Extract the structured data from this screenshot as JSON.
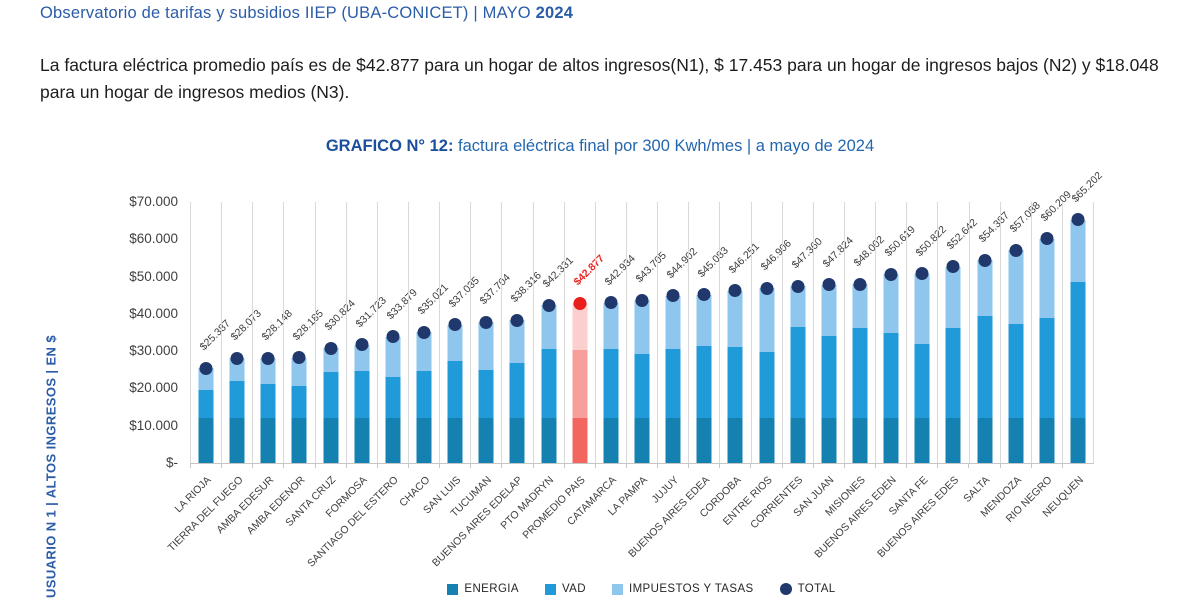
{
  "page": {
    "header_title_regular": "Observatorio de tarifas y subsidios IIEP (UBA-CONICET) | MAYO ",
    "header_title_bold": "2024",
    "intro_text": "La factura eléctrica promedio país es de $42.877 para un hogar de altos ingresos(N1), $ 17.453 para un hogar de ingresos bajos (N2) y $18.048 para un hogar de ingresos medios (N3)."
  },
  "chart": {
    "title_bold": "GRAFICO N° 12:",
    "title_rest": " factura eléctrica final por 300 Kwh/mes | a mayo de 2024",
    "y_axis_title": "USUARIO N 1 | ALTOS INGRESOS | EN $",
    "y_ticks": [
      "$70.000",
      "$60.000",
      "$50.000",
      "$40.000",
      "$30.000",
      "$20.000",
      "$10.000",
      "$-"
    ],
    "legend": [
      {
        "label": "ENERGIA",
        "shape": "square",
        "color": "#1581b1"
      },
      {
        "label": "VAD",
        "shape": "square",
        "color": "#219ada"
      },
      {
        "label": "IMPUESTOS Y TASAS",
        "shape": "square",
        "color": "#8ec6ed"
      },
      {
        "label": "TOTAL",
        "shape": "circle",
        "color": "#20386b"
      }
    ]
  },
  "colors": {
    "energia": "#1581b1",
    "vad": "#219ada",
    "impuestos": "#8ec6ed",
    "total_dot": "#20386b",
    "highlight_energia": "#f2665f",
    "highlight_vad": "#f79f9d",
    "highlight_impuestos": "#fbcfce",
    "highlight_dot": "#e81f1b",
    "title_blue": "#2467ae",
    "header_blue": "#2b5ca8",
    "gridline": "#d9d9d9"
  },
  "chart_data": {
    "type": "bar",
    "subtype": "stacked-bars-with-total-dot",
    "title": "GRAFICO N° 12: factura eléctrica final por 300 Kwh/mes | a mayo de 2024",
    "xlabel": "",
    "ylabel": "USUARIO N 1 | ALTOS INGRESOS | EN $",
    "ylim": [
      0,
      70000
    ],
    "grid": "vertical-only",
    "legend_position": "bottom-center",
    "series_names": [
      "ENERGIA",
      "VAD",
      "IMPUESTOS Y TASAS",
      "TOTAL"
    ],
    "note": "ENERGIA/VAD/IMPUESTOS segment values estimated from pixel heights; totals are the printed data labels",
    "bars": [
      {
        "category": "LA RIOJA",
        "label": "$25.387",
        "total": 25387,
        "energia": 12100,
        "vad": 7500,
        "impuestos": 5787,
        "highlight": false
      },
      {
        "category": "TIERRA DEL FUEGO",
        "label": "$28.073",
        "total": 28073,
        "energia": 12100,
        "vad": 10000,
        "impuestos": 5973,
        "highlight": false
      },
      {
        "category": "AMBA EDESUR",
        "label": "$28.148",
        "total": 28148,
        "energia": 12100,
        "vad": 9000,
        "impuestos": 7048,
        "highlight": false
      },
      {
        "category": "AMBA EDENOR",
        "label": "$28.185",
        "total": 28185,
        "energia": 12100,
        "vad": 8600,
        "impuestos": 7485,
        "highlight": false
      },
      {
        "category": "SANTA CRUZ",
        "label": "$30.824",
        "total": 30824,
        "energia": 12100,
        "vad": 12200,
        "impuestos": 6524,
        "highlight": false
      },
      {
        "category": "FORMOSA",
        "label": "$31.723",
        "total": 31723,
        "energia": 12100,
        "vad": 12700,
        "impuestos": 6923,
        "highlight": false
      },
      {
        "category": "SANTIAGO DEL ESTERO",
        "label": "$33.879",
        "total": 33879,
        "energia": 12100,
        "vad": 11100,
        "impuestos": 10679,
        "highlight": false
      },
      {
        "category": "CHACO",
        "label": "$35.021",
        "total": 35021,
        "energia": 12100,
        "vad": 12600,
        "impuestos": 10321,
        "highlight": false
      },
      {
        "category": "SAN LUIS",
        "label": "$37.035",
        "total": 37035,
        "energia": 12100,
        "vad": 15300,
        "impuestos": 9635,
        "highlight": false
      },
      {
        "category": "TUCUMAN",
        "label": "$37.704",
        "total": 37704,
        "energia": 12100,
        "vad": 12800,
        "impuestos": 12804,
        "highlight": false
      },
      {
        "category": "BUENOS AIRES EDELAP",
        "label": "$38.316",
        "total": 38316,
        "energia": 12100,
        "vad": 14600,
        "impuestos": 11616,
        "highlight": false
      },
      {
        "category": "PTO MADRYN",
        "label": "$42.331",
        "total": 42331,
        "energia": 12100,
        "vad": 18500,
        "impuestos": 11731,
        "highlight": false
      },
      {
        "category": "PROMEDIO PAIS",
        "label": "$42.877",
        "total": 42877,
        "energia": 12100,
        "vad": 18200,
        "impuestos": 12577,
        "highlight": true
      },
      {
        "category": "CATAMARCA",
        "label": "$42.934",
        "total": 42934,
        "energia": 12100,
        "vad": 18600,
        "impuestos": 12234,
        "highlight": false
      },
      {
        "category": "LA PAMPA",
        "label": "$43.705",
        "total": 43705,
        "energia": 12100,
        "vad": 17100,
        "impuestos": 14505,
        "highlight": false
      },
      {
        "category": "JUJUY",
        "label": "$44.902",
        "total": 44902,
        "energia": 12100,
        "vad": 18600,
        "impuestos": 14202,
        "highlight": false
      },
      {
        "category": "BUENOS AIRES EDEA",
        "label": "$45.083",
        "total": 45083,
        "energia": 12100,
        "vad": 19300,
        "impuestos": 13683,
        "highlight": false
      },
      {
        "category": "CORDOBA",
        "label": "$46.251",
        "total": 46251,
        "energia": 12100,
        "vad": 19100,
        "impuestos": 15051,
        "highlight": false
      },
      {
        "category": "ENTRE RIOS",
        "label": "$46.906",
        "total": 46906,
        "energia": 12100,
        "vad": 17700,
        "impuestos": 17106,
        "highlight": false
      },
      {
        "category": "CORRIENTES",
        "label": "$47.360",
        "total": 47360,
        "energia": 12100,
        "vad": 24500,
        "impuestos": 10760,
        "highlight": false
      },
      {
        "category": "SAN JUAN",
        "label": "$47.824",
        "total": 47824,
        "energia": 12100,
        "vad": 22100,
        "impuestos": 13624,
        "highlight": false
      },
      {
        "category": "MISIONES",
        "label": "$48.002",
        "total": 48002,
        "energia": 12100,
        "vad": 24000,
        "impuestos": 11902,
        "highlight": false
      },
      {
        "category": "BUENOS AIRES EDEN",
        "label": "$50.619",
        "total": 50619,
        "energia": 12100,
        "vad": 22900,
        "impuestos": 15619,
        "highlight": false
      },
      {
        "category": "SANTA FE",
        "label": "$50.822",
        "total": 50822,
        "energia": 12100,
        "vad": 19700,
        "impuestos": 19022,
        "highlight": false
      },
      {
        "category": "BUENOS AIRES EDES",
        "label": "$52.642",
        "total": 52642,
        "energia": 12100,
        "vad": 24200,
        "impuestos": 16342,
        "highlight": false
      },
      {
        "category": "SALTA",
        "label": "$54.387",
        "total": 54387,
        "energia": 12100,
        "vad": 27400,
        "impuestos": 14887,
        "highlight": false
      },
      {
        "category": "MENDOZA",
        "label": "$57.088",
        "total": 57088,
        "energia": 12100,
        "vad": 25100,
        "impuestos": 19888,
        "highlight": false
      },
      {
        "category": "RIO NEGRO",
        "label": "$60.209",
        "total": 60209,
        "energia": 12100,
        "vad": 26700,
        "impuestos": 21409,
        "highlight": false
      },
      {
        "category": "NEUQUEN",
        "label": "$65.202",
        "total": 65202,
        "energia": 12100,
        "vad": 36500,
        "impuestos": 16602,
        "highlight": false
      }
    ]
  }
}
